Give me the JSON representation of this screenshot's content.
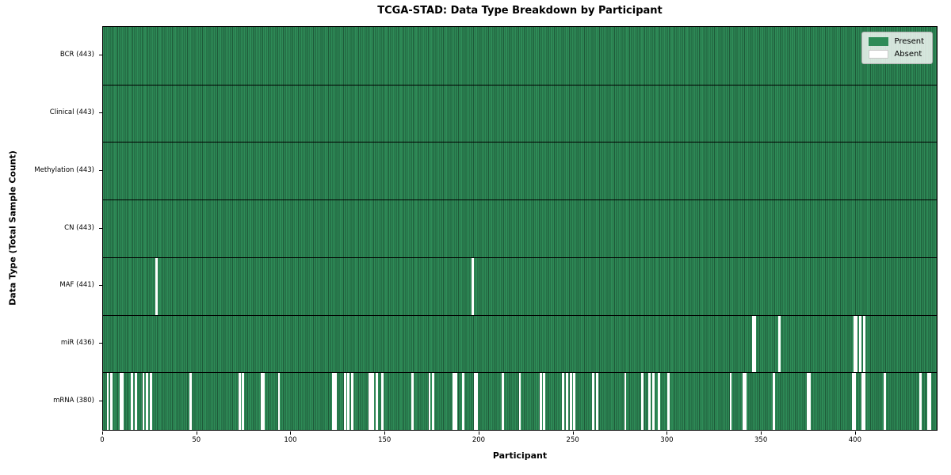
{
  "chart_data": {
    "type": "heatmap",
    "title": "TCGA-STAD: Data Type Breakdown by Participant",
    "xlabel": "Participant",
    "ylabel": "Data Type (Total Sample Count)",
    "n_participants": 443,
    "xlim": [
      0,
      443
    ],
    "x_ticks": [
      0,
      50,
      100,
      150,
      200,
      250,
      300,
      350,
      400
    ],
    "grid": false,
    "legend_position": "upper right",
    "legend": [
      {
        "label": "Present",
        "color": "#2e8b57"
      },
      {
        "label": "Absent",
        "color": "#ffffff"
      }
    ],
    "colors": {
      "present": "#2e8b57",
      "present_edge": "#1e5a39",
      "absent": "#ffffff",
      "row_divider": "#000000"
    },
    "rows": [
      {
        "data_type": "BCR",
        "label": "BCR (443)",
        "present_count": 443,
        "absent_participants": []
      },
      {
        "data_type": "Clinical",
        "label": "Clinical (443)",
        "present_count": 443,
        "absent_participants": []
      },
      {
        "data_type": "Methylation",
        "label": "Methylation (443)",
        "present_count": 443,
        "absent_participants": []
      },
      {
        "data_type": "CN",
        "label": "CN (443)",
        "present_count": 443,
        "absent_participants": []
      },
      {
        "data_type": "MAF",
        "label": "MAF (441)",
        "present_count": 441,
        "absent_participants": [
          28,
          196
        ]
      },
      {
        "data_type": "miR",
        "label": "miR (436)",
        "present_count": 436,
        "absent_participants": [
          345,
          346,
          359,
          399,
          400,
          402,
          404
        ]
      },
      {
        "data_type": "mRNA",
        "label": "mRNA (380)",
        "present_count": 380,
        "absent_participants": [
          2,
          4,
          9,
          10,
          15,
          17,
          21,
          23,
          25,
          46,
          72,
          74,
          84,
          85,
          93,
          122,
          123,
          128,
          130,
          132,
          141,
          142,
          143,
          145,
          148,
          164,
          173,
          175,
          186,
          187,
          191,
          197,
          198,
          212,
          221,
          232,
          234,
          244,
          246,
          248,
          250,
          260,
          262,
          277,
          286,
          290,
          292,
          295,
          300,
          333,
          340,
          341,
          356,
          374,
          375,
          398,
          399,
          403,
          404,
          415,
          434,
          438,
          439
        ]
      }
    ]
  }
}
